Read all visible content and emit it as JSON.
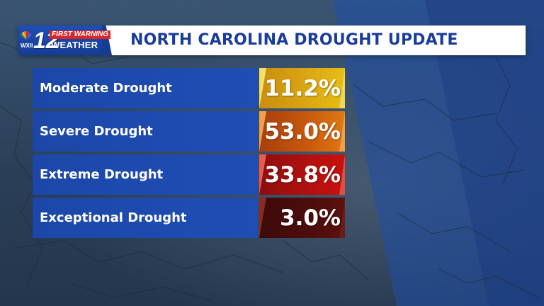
{
  "header": {
    "station_callsign": "WXII",
    "channel_number": "12",
    "brand_top": "FIRST WARNING",
    "brand_bottom": "WEATHER",
    "title": "NORTH CAROLINA DROUGHT UPDATE"
  },
  "rows": [
    {
      "label": "Moderate Drought",
      "value": "11.2%",
      "color": "#d9a313"
    },
    {
      "label": "Severe Drought",
      "value": "53.0%",
      "color": "#c7580d"
    },
    {
      "label": "Extreme Drought",
      "value": "33.8%",
      "color": "#b0100f"
    },
    {
      "label": "Exceptional Drought",
      "value": "3.0%",
      "color": "#4d0d0c"
    }
  ],
  "colors": {
    "header_title": "#1a3d9c",
    "label_bar": "#1e4bb0",
    "logo_blue": "#163c94",
    "logo_red": "#d8262b"
  }
}
